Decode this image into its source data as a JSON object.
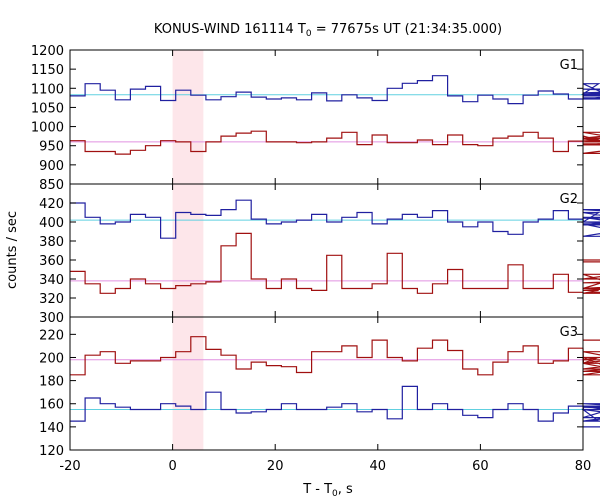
{
  "chart_data": {
    "type": "line",
    "title_main": "KONUS-WIND 161114 T",
    "title_sub": "0",
    "title_rest": " = 77675s UT (21:34:35.000)",
    "xlabel_main": "T - T",
    "xlabel_sub": "0",
    "xlabel_rest": ", s",
    "ylabel": "counts / sec",
    "xlim": [
      -20,
      80
    ],
    "x_ticks": [
      -20,
      0,
      20,
      40,
      60,
      80
    ],
    "highlight": [
      0,
      6
    ],
    "step": 2.944,
    "x_start": -20,
    "panels": [
      {
        "label": "G1",
        "ylim": [
          850,
          1200
        ],
        "y_ticks": [
          850,
          900,
          950,
          1000,
          1050,
          1100,
          1150,
          1200
        ],
        "series": [
          {
            "color": "#2020a0",
            "bg_level": 1083,
            "bg_color": "#60d0e0",
            "values": [
              1080,
              1112,
              1095,
              1070,
              1098,
              1105,
              1068,
              1095,
              1082,
              1070,
              1078,
              1090,
              1077,
              1072,
              1075,
              1070,
              1088,
              1067,
              1083,
              1075,
              1068,
              1100,
              1113,
              1120,
              1133,
              1080,
              1065,
              1082,
              1072,
              1060,
              1082,
              1093,
              1085,
              1072,
              1085,
              1112,
              1075,
              1072,
              1088,
              1082,
              1080,
              1088,
              1098,
              1084
            ]
          },
          {
            "color": "#a01010",
            "bg_level": 960,
            "bg_color": "#e090e0",
            "values": [
              963,
              935,
              935,
              928,
              938,
              950,
              963,
              960,
              935,
              960,
              975,
              983,
              988,
              960,
              960,
              958,
              960,
              970,
              985,
              953,
              978,
              958,
              958,
              965,
              953,
              978,
              953,
              950,
              970,
              975,
              985,
              970,
              935,
              962,
              975,
              965,
              960,
              970,
              985,
              952,
              970,
              930,
              970,
              955
            ]
          }
        ]
      },
      {
        "label": "G2",
        "ylim": [
          300,
          440
        ],
        "y_ticks": [
          300,
          320,
          340,
          360,
          380,
          400,
          420
        ],
        "series": [
          {
            "color": "#2020a0",
            "bg_level": 402,
            "bg_color": "#60d0e0",
            "values": [
              420,
              405,
              398,
              400,
              408,
              405,
              383,
              410,
              408,
              407,
              413,
              423,
              403,
              398,
              400,
              402,
              408,
              400,
              405,
              410,
              398,
              403,
              408,
              405,
              412,
              400,
              395,
              400,
              390,
              387,
              400,
              403,
              412,
              403,
              400,
              410,
              405,
              398,
              385,
              385,
              400,
              397,
              413,
              404
            ]
          },
          {
            "color": "#a01010",
            "bg_level": 338,
            "bg_color": "#e090e0",
            "values": [
              348,
              335,
              325,
              330,
              340,
              335,
              330,
              333,
              335,
              337,
              375,
              388,
              340,
              330,
              340,
              330,
              328,
              365,
              330,
              330,
              335,
              367,
              330,
              325,
              335,
              350,
              330,
              330,
              330,
              355,
              330,
              330,
              345,
              326,
              325,
              328,
              330,
              345,
              325,
              330,
              336,
              340,
              358,
              360
            ]
          }
        ]
      },
      {
        "label": "G3",
        "ylim": [
          120,
          235
        ],
        "y_ticks": [
          120,
          140,
          160,
          180,
          200,
          220
        ],
        "series": [
          {
            "color": "#a01010",
            "bg_level": 198,
            "bg_color": "#e090e0",
            "values": [
              185,
              202,
              205,
              195,
              197,
              197,
              200,
              205,
              218,
              207,
              202,
              190,
              196,
              193,
              192,
              187,
              205,
              205,
              210,
              200,
              215,
              200,
              197,
              208,
              215,
              206,
              190,
              185,
              196,
              205,
              210,
              195,
              197,
              208,
              195,
              200,
              190,
              195,
              185,
              195,
              205,
              188,
              198,
              215
            ]
          },
          {
            "color": "#2020a0",
            "bg_level": 155,
            "bg_color": "#60d0e0",
            "values": [
              145,
              165,
              160,
              157,
              155,
              155,
              160,
              158,
              155,
              170,
              155,
              152,
              153,
              155,
              160,
              155,
              155,
              157,
              160,
              153,
              155,
              147,
              175,
              155,
              160,
              155,
              150,
              148,
              155,
              160,
              155,
              145,
              152,
              158,
              155,
              145,
              148,
              160,
              157,
              155,
              145,
              158,
              158,
              140
            ]
          }
        ]
      }
    ]
  }
}
